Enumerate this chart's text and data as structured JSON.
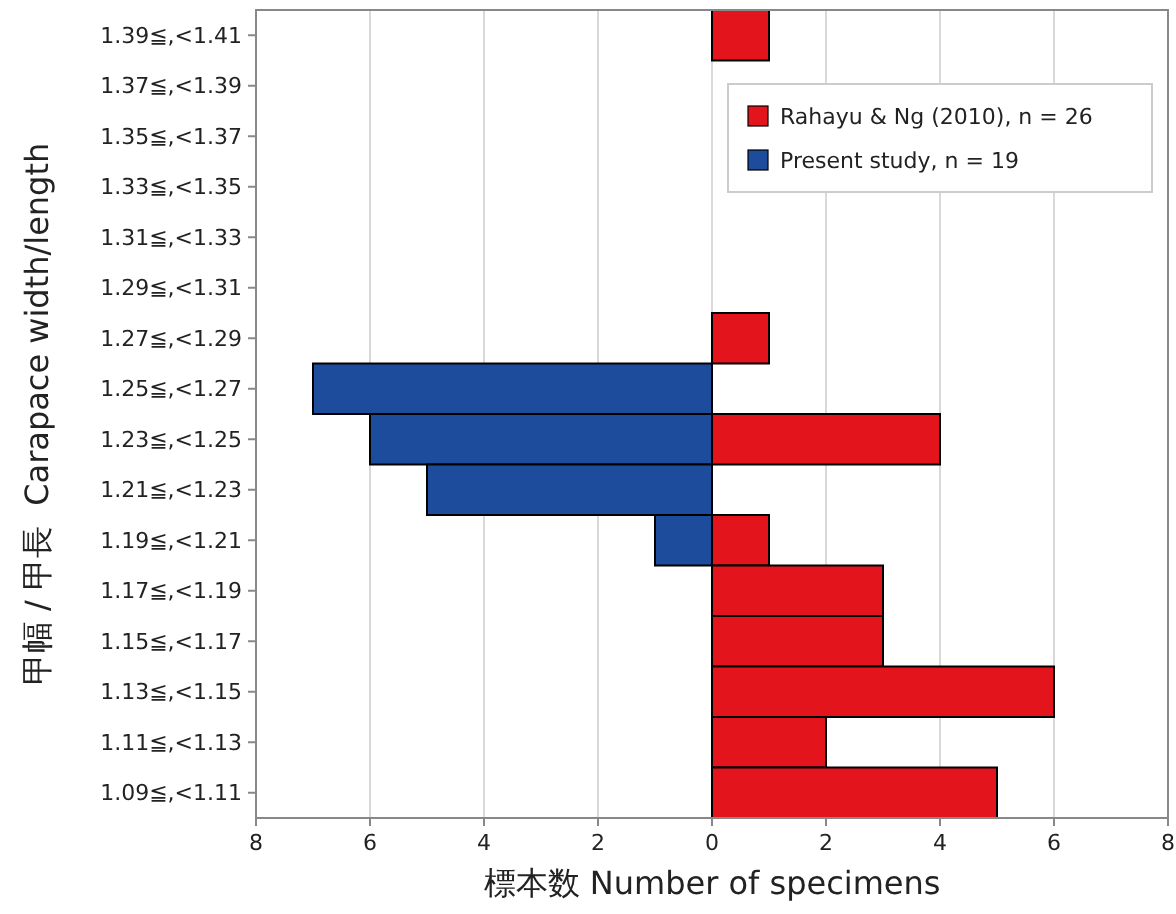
{
  "chart_data": {
    "type": "bar",
    "orientation": "horizontal",
    "xlabel": "標本数 Number of specimens",
    "ylabel": "甲幅 / 甲長  Carapace width/length",
    "categories": [
      "1.39≦,<1.41",
      "1.37≦,<1.39",
      "1.35≦,<1.37",
      "1.33≦,<1.35",
      "1.31≦,<1.33",
      "1.29≦,<1.31",
      "1.27≦,<1.29",
      "1.25≦,<1.27",
      "1.23≦,<1.25",
      "1.21≦,<1.23",
      "1.19≦,<1.21",
      "1.17≦,<1.19",
      "1.15≦,<1.17",
      "1.13≦,<1.15",
      "1.11≦,<1.13",
      "1.09≦,<1.11"
    ],
    "series": [
      {
        "name": "Rahayu & Ng (2010), n = 26",
        "color": "#e3141c",
        "values": [
          1,
          0,
          0,
          0,
          0,
          0,
          1,
          0,
          4,
          0,
          1,
          3,
          3,
          6,
          2,
          5
        ]
      },
      {
        "name": "Present study, n = 19",
        "color": "#1d4c9c",
        "values": [
          0,
          0,
          0,
          0,
          0,
          0,
          0,
          -7,
          -6,
          -5,
          -1,
          0,
          0,
          0,
          0,
          0
        ]
      }
    ],
    "xlim": [
      -8,
      8
    ],
    "xticks": [
      {
        "value": -8,
        "label": "8"
      },
      {
        "value": -6,
        "label": "6"
      },
      {
        "value": -4,
        "label": "4"
      },
      {
        "value": -2,
        "label": "2"
      },
      0,
      2,
      4,
      6,
      8
    ],
    "grid": "x",
    "legend": "top right"
  }
}
